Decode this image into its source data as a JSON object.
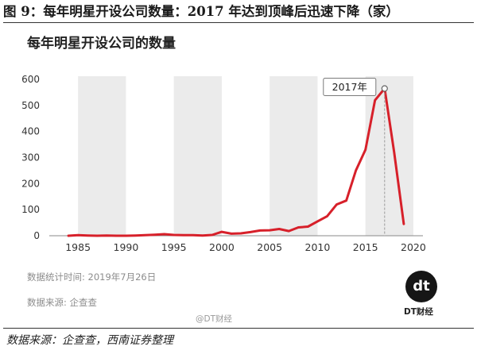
{
  "figure_caption": "图 9：每年明星开设公司数量：2017 年达到顶峰后迅速下降（家）",
  "source_note": "数据来源：企查查，西南证券整理",
  "chart_meta": {
    "stats_time": "数据统计时间: 2019年7月26日",
    "data_source": "数据来源: 企查查",
    "weibo_handle": "@DT财经",
    "brand_mark": "dt",
    "brand_name": "DT财经"
  },
  "colors": {
    "line": "#d7202a",
    "band": "#ebebeb",
    "axis": "#8a8a8a",
    "text": "#333333",
    "logo_bg": "#161616"
  },
  "chart_data": {
    "type": "line",
    "title": "每年明星开设公司的数量",
    "xlabel": "",
    "ylabel": "",
    "xlim": [
      1982,
      2021
    ],
    "ylim": [
      0,
      600
    ],
    "x_ticks": [
      "1985",
      "1990",
      "1995",
      "2000",
      "2005",
      "2010",
      "2015",
      "2020"
    ],
    "y_ticks": [
      "0",
      "100",
      "200",
      "300",
      "400",
      "500",
      "600"
    ],
    "shaded_bands": [
      [
        1985,
        1990
      ],
      [
        1995,
        2000
      ],
      [
        2005,
        2010
      ],
      [
        2015,
        2020
      ]
    ],
    "grid": false,
    "legend": "none",
    "annotation": {
      "label": "2017年",
      "x": 2017,
      "y": 565
    },
    "series": [
      {
        "x": [
          1984,
          1985,
          1986,
          1987,
          1988,
          1989,
          1990,
          1991,
          1992,
          1993,
          1994,
          1995,
          1996,
          1997,
          1998,
          1999,
          2000,
          2001,
          2002,
          2003,
          2004,
          2005,
          2006,
          2007,
          2008,
          2009,
          2010,
          2011,
          2012,
          2013,
          2014,
          2015,
          2016,
          2017,
          2018,
          2019
        ],
        "y": [
          0,
          2,
          1,
          0,
          1,
          0,
          0,
          1,
          2,
          4,
          6,
          3,
          2,
          2,
          1,
          3,
          15,
          8,
          9,
          14,
          20,
          21,
          26,
          18,
          32,
          35,
          55,
          75,
          120,
          135,
          250,
          330,
          520,
          565,
          320,
          45
        ]
      }
    ]
  }
}
